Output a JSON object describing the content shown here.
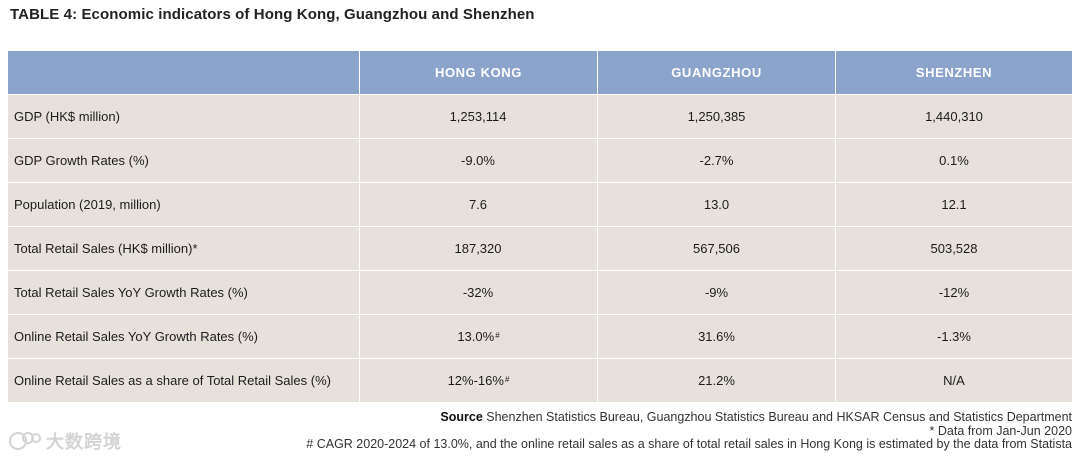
{
  "title": "TABLE 4: Economic indicators of Hong Kong, Guangzhou and Shenzhen",
  "columns": [
    "",
    "HONG KONG",
    "GUANGZHOU",
    "SHENZHEN"
  ],
  "rows": [
    {
      "label": "GDP (HK$ million)",
      "hk": "1,253,114",
      "hk_mark": "",
      "gz": "1,250,385",
      "sz": "1,440,310"
    },
    {
      "label": "GDP Growth Rates (%)",
      "hk": "-9.0%",
      "hk_mark": "",
      "gz": "-2.7%",
      "sz": "0.1%"
    },
    {
      "label": "Population (2019, million)",
      "hk": "7.6",
      "hk_mark": "",
      "gz": "13.0",
      "sz": "12.1"
    },
    {
      "label": "Total Retail Sales (HK$ million)*",
      "hk": "187,320",
      "hk_mark": "",
      "gz": "567,506",
      "sz": "503,528"
    },
    {
      "label": "Total Retail Sales YoY Growth Rates (%)",
      "hk": "-32%",
      "hk_mark": "",
      "gz": "-9%",
      "sz": "-12%"
    },
    {
      "label": "Online Retail Sales YoY Growth Rates (%)",
      "hk": "13.0%",
      "hk_mark": "#",
      "gz": "31.6%",
      "sz": "-1.3%"
    },
    {
      "label": "Online Retail Sales as a share of Total Retail Sales (%)",
      "hk": "12%-16%",
      "hk_mark": "#",
      "gz": "21.2%",
      "sz": "N/A"
    }
  ],
  "notes": {
    "source_label": "Source",
    "source_text": "Shenzhen Statistics Bureau, Guangzhou Statistics Bureau and HKSAR Census and Statistics Department",
    "asterisk_note": "* Data from Jan-Jun 2020",
    "hash_note": "# CAGR 2020-2024 of 13.0%, and the online retail sales as a share of total retail sales in Hong Kong is estimated by the data from Statista"
  },
  "watermark": {
    "icon": "logo-icon",
    "text": "大数跨境"
  },
  "colors": {
    "header_bg": "#8aa4cb",
    "row_bg": "#e7e1dc",
    "header_text": "#ffffff"
  }
}
